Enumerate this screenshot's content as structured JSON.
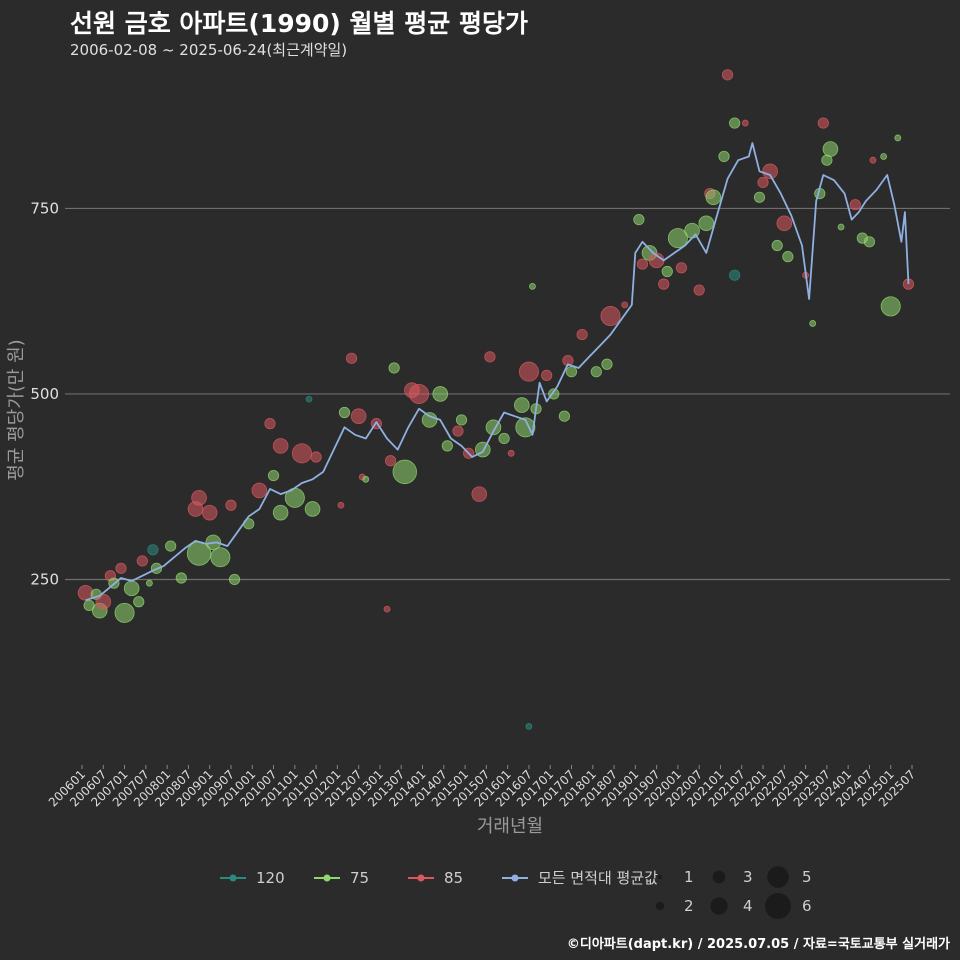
{
  "header": {
    "title": "선원 금호 아파트(1990) 월별 평균 평당가",
    "subtitle": "2006-02-08 ~ 2025-06-24(최근계약일)"
  },
  "credit": "©디아파트(dapt.kr) / 2025.07.05 / 자료=국토교통부 실거래가",
  "colors": {
    "background": "#2b2b2b",
    "grid": "#6e6e6e",
    "s120": "#2b8a80",
    "s75": "#8fd66f",
    "s85": "#d9585f",
    "avg": "#8fb0e0"
  },
  "chart_data": {
    "type": "scatter",
    "title": "선원 금호 아파트(1990) 월별 평균 평당가",
    "xlabel": "거래년월",
    "ylabel": "평균 평당가(만 원)",
    "x_range": [
      "2006-01",
      "2025-07"
    ],
    "ylim": [
      0,
      950
    ],
    "y_ticks": [
      250,
      500,
      750
    ],
    "x_ticks": [
      "200601",
      "200607",
      "200701",
      "200707",
      "200801",
      "200807",
      "200901",
      "200907",
      "201001",
      "201007",
      "201101",
      "201107",
      "201201",
      "201207",
      "201301",
      "201307",
      "201401",
      "201407",
      "201501",
      "201507",
      "201601",
      "201607",
      "201701",
      "201707",
      "201801",
      "201807",
      "201901",
      "201907",
      "202001",
      "202007",
      "202101",
      "202107",
      "202201",
      "202207",
      "202301",
      "202307",
      "202401",
      "202407",
      "202501",
      "202507"
    ],
    "legend": {
      "series": [
        {
          "key": "120",
          "label": "120"
        },
        {
          "key": "75",
          "label": "75"
        },
        {
          "key": "85",
          "label": "85"
        },
        {
          "key": "avg",
          "label": "모든 면적대 평균값"
        }
      ],
      "size_labels": [
        "1",
        "2",
        "3",
        "4",
        "5",
        "6"
      ]
    },
    "average_line": [
      [
        "2006-02",
        222
      ],
      [
        "2006-04",
        225
      ],
      [
        "2006-06",
        228
      ],
      [
        "2006-09",
        240
      ],
      [
        "2006-12",
        252
      ],
      [
        "2007-03",
        248
      ],
      [
        "2007-06",
        255
      ],
      [
        "2007-09",
        262
      ],
      [
        "2007-12",
        268
      ],
      [
        "2008-03",
        280
      ],
      [
        "2008-06",
        292
      ],
      [
        "2008-09",
        302
      ],
      [
        "2008-12",
        298
      ],
      [
        "2009-03",
        300
      ],
      [
        "2009-06",
        295
      ],
      [
        "2009-09",
        315
      ],
      [
        "2009-12",
        335
      ],
      [
        "2010-03",
        345
      ],
      [
        "2010-06",
        372
      ],
      [
        "2010-09",
        365
      ],
      [
        "2010-12",
        370
      ],
      [
        "2011-03",
        380
      ],
      [
        "2011-06",
        385
      ],
      [
        "2011-09",
        395
      ],
      [
        "2011-12",
        425
      ],
      [
        "2012-03",
        455
      ],
      [
        "2012-06",
        445
      ],
      [
        "2012-09",
        440
      ],
      [
        "2012-12",
        462
      ],
      [
        "2013-03",
        440
      ],
      [
        "2013-06",
        425
      ],
      [
        "2013-09",
        455
      ],
      [
        "2013-12",
        480
      ],
      [
        "2014-03",
        470
      ],
      [
        "2014-06",
        465
      ],
      [
        "2014-09",
        440
      ],
      [
        "2014-12",
        430
      ],
      [
        "2015-03",
        415
      ],
      [
        "2015-06",
        422
      ],
      [
        "2015-09",
        450
      ],
      [
        "2015-12",
        475
      ],
      [
        "2016-03",
        470
      ],
      [
        "2016-06",
        465
      ],
      [
        "2016-08",
        445
      ],
      [
        "2016-10",
        515
      ],
      [
        "2016-12",
        490
      ],
      [
        "2017-03",
        510
      ],
      [
        "2017-06",
        540
      ],
      [
        "2017-09",
        535
      ],
      [
        "2017-12",
        550
      ],
      [
        "2018-03",
        565
      ],
      [
        "2018-06",
        580
      ],
      [
        "2018-09",
        600
      ],
      [
        "2018-12",
        620
      ],
      [
        "2019-01",
        690
      ],
      [
        "2019-03",
        705
      ],
      [
        "2019-06",
        690
      ],
      [
        "2019-09",
        680
      ],
      [
        "2019-12",
        690
      ],
      [
        "2020-03",
        700
      ],
      [
        "2020-06",
        715
      ],
      [
        "2020-09",
        690
      ],
      [
        "2020-12",
        740
      ],
      [
        "2021-03",
        790
      ],
      [
        "2021-06",
        815
      ],
      [
        "2021-09",
        820
      ],
      [
        "2021-10",
        838
      ],
      [
        "2021-12",
        800
      ],
      [
        "2022-03",
        795
      ],
      [
        "2022-06",
        770
      ],
      [
        "2022-09",
        740
      ],
      [
        "2022-12",
        700
      ],
      [
        "2023-02",
        628
      ],
      [
        "2023-04",
        760
      ],
      [
        "2023-06",
        795
      ],
      [
        "2023-09",
        788
      ],
      [
        "2023-12",
        770
      ],
      [
        "2024-02",
        735
      ],
      [
        "2024-04",
        745
      ],
      [
        "2024-06",
        760
      ],
      [
        "2024-09",
        775
      ],
      [
        "2024-12",
        795
      ],
      [
        "2025-02",
        755
      ],
      [
        "2025-04",
        705
      ],
      [
        "2025-05",
        745
      ],
      [
        "2025-06",
        648
      ]
    ],
    "points": [
      {
        "s": "85",
        "t": "2006-02",
        "v": 232,
        "n": 3
      },
      {
        "s": "75",
        "t": "2006-03",
        "v": 215,
        "n": 2
      },
      {
        "s": "75",
        "t": "2006-05",
        "v": 230,
        "n": 2
      },
      {
        "s": "75",
        "t": "2006-06",
        "v": 208,
        "n": 3
      },
      {
        "s": "85",
        "t": "2006-07",
        "v": 220,
        "n": 3
      },
      {
        "s": "85",
        "t": "2006-09",
        "v": 255,
        "n": 2
      },
      {
        "s": "75",
        "t": "2006-10",
        "v": 245,
        "n": 2
      },
      {
        "s": "85",
        "t": "2006-12",
        "v": 265,
        "n": 2
      },
      {
        "s": "75",
        "t": "2007-01",
        "v": 205,
        "n": 4
      },
      {
        "s": "75",
        "t": "2007-03",
        "v": 238,
        "n": 3
      },
      {
        "s": "75",
        "t": "2007-05",
        "v": 220,
        "n": 2
      },
      {
        "s": "85",
        "t": "2007-06",
        "v": 275,
        "n": 2
      },
      {
        "s": "120",
        "t": "2007-09",
        "v": 290,
        "n": 2
      },
      {
        "s": "75",
        "t": "2007-10",
        "v": 265,
        "n": 2
      },
      {
        "s": "75",
        "t": "2007-08",
        "v": 245,
        "n": 1
      },
      {
        "s": "75",
        "t": "2008-02",
        "v": 295,
        "n": 2
      },
      {
        "s": "75",
        "t": "2008-05",
        "v": 252,
        "n": 2
      },
      {
        "s": "85",
        "t": "2008-09",
        "v": 345,
        "n": 3
      },
      {
        "s": "85",
        "t": "2008-10",
        "v": 360,
        "n": 3
      },
      {
        "s": "75",
        "t": "2008-10",
        "v": 285,
        "n": 5
      },
      {
        "s": "85",
        "t": "2009-01",
        "v": 340,
        "n": 3
      },
      {
        "s": "75",
        "t": "2009-02",
        "v": 300,
        "n": 3
      },
      {
        "s": "75",
        "t": "2009-04",
        "v": 280,
        "n": 4
      },
      {
        "s": "85",
        "t": "2009-07",
        "v": 350,
        "n": 2
      },
      {
        "s": "75",
        "t": "2009-08",
        "v": 250,
        "n": 2
      },
      {
        "s": "75",
        "t": "2009-12",
        "v": 325,
        "n": 2
      },
      {
        "s": "85",
        "t": "2010-03",
        "v": 370,
        "n": 3
      },
      {
        "s": "85",
        "t": "2010-06",
        "v": 460,
        "n": 2
      },
      {
        "s": "75",
        "t": "2010-07",
        "v": 390,
        "n": 2
      },
      {
        "s": "75",
        "t": "2010-09",
        "v": 340,
        "n": 3
      },
      {
        "s": "85",
        "t": "2010-09",
        "v": 430,
        "n": 3
      },
      {
        "s": "75",
        "t": "2011-01",
        "v": 360,
        "n": 4
      },
      {
        "s": "85",
        "t": "2011-03",
        "v": 420,
        "n": 4
      },
      {
        "s": "75",
        "t": "2011-06",
        "v": 345,
        "n": 3
      },
      {
        "s": "85",
        "t": "2011-07",
        "v": 415,
        "n": 2
      },
      {
        "s": "120",
        "t": "2011-05",
        "v": 493,
        "n": 1
      },
      {
        "s": "85",
        "t": "2012-02",
        "v": 350,
        "n": 1
      },
      {
        "s": "75",
        "t": "2012-03",
        "v": 475,
        "n": 2
      },
      {
        "s": "85",
        "t": "2012-05",
        "v": 548,
        "n": 2
      },
      {
        "s": "85",
        "t": "2012-07",
        "v": 470,
        "n": 3
      },
      {
        "s": "85",
        "t": "2012-08",
        "v": 388,
        "n": 1
      },
      {
        "s": "75",
        "t": "2012-09",
        "v": 385,
        "n": 1
      },
      {
        "s": "85",
        "t": "2012-12",
        "v": 460,
        "n": 2
      },
      {
        "s": "85",
        "t": "2013-03",
        "v": 210,
        "n": 1
      },
      {
        "s": "75",
        "t": "2013-05",
        "v": 535,
        "n": 2
      },
      {
        "s": "85",
        "t": "2013-04",
        "v": 410,
        "n": 2
      },
      {
        "s": "75",
        "t": "2013-08",
        "v": 395,
        "n": 5
      },
      {
        "s": "85",
        "t": "2013-10",
        "v": 505,
        "n": 3
      },
      {
        "s": "85",
        "t": "2013-12",
        "v": 500,
        "n": 4
      },
      {
        "s": "75",
        "t": "2014-03",
        "v": 465,
        "n": 3
      },
      {
        "s": "75",
        "t": "2014-06",
        "v": 500,
        "n": 3
      },
      {
        "s": "75",
        "t": "2014-08",
        "v": 430,
        "n": 2
      },
      {
        "s": "85",
        "t": "2014-11",
        "v": 450,
        "n": 2
      },
      {
        "s": "75",
        "t": "2014-12",
        "v": 465,
        "n": 2
      },
      {
        "s": "85",
        "t": "2015-02",
        "v": 420,
        "n": 2
      },
      {
        "s": "85",
        "t": "2015-05",
        "v": 365,
        "n": 3
      },
      {
        "s": "75",
        "t": "2015-06",
        "v": 425,
        "n": 3
      },
      {
        "s": "75",
        "t": "2015-09",
        "v": 455,
        "n": 3
      },
      {
        "s": "85",
        "t": "2015-08",
        "v": 550,
        "n": 2
      },
      {
        "s": "75",
        "t": "2015-12",
        "v": 440,
        "n": 2
      },
      {
        "s": "85",
        "t": "2016-02",
        "v": 420,
        "n": 1
      },
      {
        "s": "75",
        "t": "2016-05",
        "v": 485,
        "n": 3
      },
      {
        "s": "75",
        "t": "2016-06",
        "v": 455,
        "n": 4
      },
      {
        "s": "85",
        "t": "2016-07",
        "v": 530,
        "n": 4
      },
      {
        "s": "120",
        "t": "2016-07",
        "v": 52,
        "n": 1
      },
      {
        "s": "75",
        "t": "2016-08",
        "v": 645,
        "n": 1
      },
      {
        "s": "75",
        "t": "2016-09",
        "v": 480,
        "n": 2
      },
      {
        "s": "85",
        "t": "2016-12",
        "v": 525,
        "n": 2
      },
      {
        "s": "75",
        "t": "2017-02",
        "v": 500,
        "n": 2
      },
      {
        "s": "75",
        "t": "2017-05",
        "v": 470,
        "n": 2
      },
      {
        "s": "85",
        "t": "2017-06",
        "v": 545,
        "n": 2
      },
      {
        "s": "75",
        "t": "2017-07",
        "v": 530,
        "n": 2
      },
      {
        "s": "85",
        "t": "2017-10",
        "v": 580,
        "n": 2
      },
      {
        "s": "75",
        "t": "2018-02",
        "v": 530,
        "n": 2
      },
      {
        "s": "75",
        "t": "2018-05",
        "v": 540,
        "n": 2
      },
      {
        "s": "85",
        "t": "2018-06",
        "v": 605,
        "n": 4
      },
      {
        "s": "85",
        "t": "2018-10",
        "v": 620,
        "n": 1
      },
      {
        "s": "75",
        "t": "2019-02",
        "v": 735,
        "n": 2
      },
      {
        "s": "85",
        "t": "2019-03",
        "v": 675,
        "n": 2
      },
      {
        "s": "75",
        "t": "2019-05",
        "v": 690,
        "n": 3
      },
      {
        "s": "85",
        "t": "2019-07",
        "v": 680,
        "n": 3
      },
      {
        "s": "85",
        "t": "2019-09",
        "v": 648,
        "n": 2
      },
      {
        "s": "75",
        "t": "2019-10",
        "v": 665,
        "n": 2
      },
      {
        "s": "75",
        "t": "2020-01",
        "v": 710,
        "n": 4
      },
      {
        "s": "85",
        "t": "2020-02",
        "v": 670,
        "n": 2
      },
      {
        "s": "75",
        "t": "2020-05",
        "v": 720,
        "n": 3
      },
      {
        "s": "85",
        "t": "2020-07",
        "v": 640,
        "n": 2
      },
      {
        "s": "75",
        "t": "2020-09",
        "v": 730,
        "n": 3
      },
      {
        "s": "85",
        "t": "2020-10",
        "v": 770,
        "n": 2
      },
      {
        "s": "75",
        "t": "2020-11",
        "v": 765,
        "n": 3
      },
      {
        "s": "75",
        "t": "2021-02",
        "v": 820,
        "n": 2
      },
      {
        "s": "85",
        "t": "2021-03",
        "v": 930,
        "n": 2
      },
      {
        "s": "75",
        "t": "2021-05",
        "v": 865,
        "n": 2
      },
      {
        "s": "120",
        "t": "2021-05",
        "v": 660,
        "n": 2
      },
      {
        "s": "85",
        "t": "2021-08",
        "v": 865,
        "n": 1
      },
      {
        "s": "75",
        "t": "2021-12",
        "v": 765,
        "n": 2
      },
      {
        "s": "85",
        "t": "2022-01",
        "v": 785,
        "n": 2
      },
      {
        "s": "85",
        "t": "2022-03",
        "v": 800,
        "n": 3
      },
      {
        "s": "75",
        "t": "2022-05",
        "v": 700,
        "n": 2
      },
      {
        "s": "85",
        "t": "2022-07",
        "v": 730,
        "n": 3
      },
      {
        "s": "75",
        "t": "2022-08",
        "v": 685,
        "n": 2
      },
      {
        "s": "85",
        "t": "2023-01",
        "v": 660,
        "n": 1
      },
      {
        "s": "75",
        "t": "2023-03",
        "v": 595,
        "n": 1
      },
      {
        "s": "75",
        "t": "2023-05",
        "v": 770,
        "n": 2
      },
      {
        "s": "85",
        "t": "2023-06",
        "v": 865,
        "n": 2
      },
      {
        "s": "75",
        "t": "2023-07",
        "v": 815,
        "n": 2
      },
      {
        "s": "75",
        "t": "2023-08",
        "v": 830,
        "n": 3
      },
      {
        "s": "75",
        "t": "2023-11",
        "v": 725,
        "n": 1
      },
      {
        "s": "85",
        "t": "2024-03",
        "v": 755,
        "n": 2
      },
      {
        "s": "75",
        "t": "2024-05",
        "v": 710,
        "n": 2
      },
      {
        "s": "75",
        "t": "2024-07",
        "v": 705,
        "n": 2
      },
      {
        "s": "85",
        "t": "2024-08",
        "v": 815,
        "n": 1
      },
      {
        "s": "75",
        "t": "2024-11",
        "v": 820,
        "n": 1
      },
      {
        "s": "75",
        "t": "2025-01",
        "v": 618,
        "n": 4
      },
      {
        "s": "75",
        "t": "2025-03",
        "v": 845,
        "n": 1
      },
      {
        "s": "85",
        "t": "2025-06",
        "v": 648,
        "n": 2
      }
    ]
  }
}
